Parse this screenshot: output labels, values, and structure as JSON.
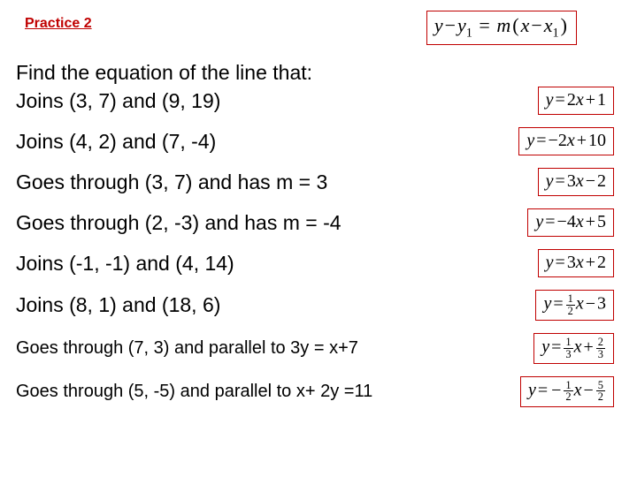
{
  "title": "Practice 2",
  "title_color": "#c00000",
  "box_border_color": "#c00000",
  "background_color": "#ffffff",
  "top_formula": {
    "lhs_var1": "y",
    "lhs_var2": "y",
    "lhs_sub2": "1",
    "slope": "m",
    "rhs_var1": "x",
    "rhs_var2": "x",
    "rhs_sub2": "1"
  },
  "intro": "Find the equation of the line that:",
  "items": [
    {
      "question": "Joins (3, 7)  and (9, 19)",
      "answer": {
        "type": "linear",
        "m": "2",
        "b_sign": "+",
        "b": "1"
      }
    },
    {
      "question": "Joins (4, 2)  and (7, -4)",
      "answer": {
        "type": "linear",
        "m": "−2",
        "b_sign": "+",
        "b": "10"
      }
    },
    {
      "question": "Goes through (3, 7) and has m = 3",
      "answer": {
        "type": "linear",
        "m": "3",
        "b_sign": "−",
        "b": "2"
      }
    },
    {
      "question": "Goes through (2, -3) and has m = -4",
      "answer": {
        "type": "linear",
        "m": "−4",
        "b_sign": "+",
        "b": "5"
      }
    },
    {
      "question": "Joins (-1, -1)  and (4, 14)",
      "answer": {
        "type": "linear",
        "m": "3",
        "b_sign": "+",
        "b": "2"
      }
    },
    {
      "question": "Joins (8, 1)  and (18, 6)",
      "answer": {
        "type": "linear_frac",
        "m_num": "1",
        "m_den": "2",
        "b_sign": "−",
        "b": "3"
      }
    },
    {
      "question": "Goes through (7, 3) and parallel to 3y = x+7",
      "small": true,
      "answer": {
        "type": "linear_frac_fracb",
        "m_num": "1",
        "m_den": "3",
        "b_sign": "+",
        "b_num": "2",
        "b_den": "3"
      }
    },
    {
      "question": "Goes through (5, -5) and parallel to x+ 2y =11",
      "small": true,
      "answer": {
        "type": "linear_negfrac_fracb",
        "m_num": "1",
        "m_den": "2",
        "b_sign": "−",
        "b_num": "5",
        "b_den": "2"
      }
    }
  ]
}
